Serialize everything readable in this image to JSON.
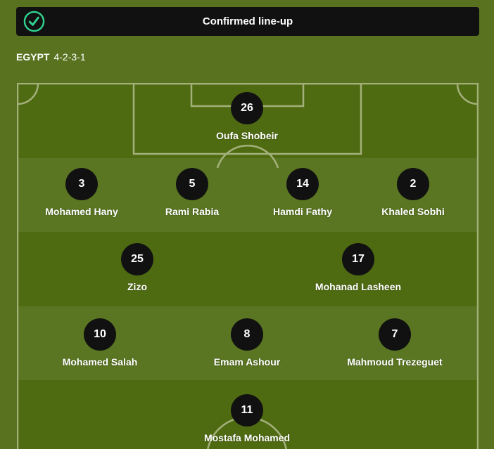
{
  "banner": {
    "title": "Confirmed line-up",
    "icon": "check-circle-icon",
    "icon_color": "#2fd38f"
  },
  "team": {
    "name": "EGYPT",
    "formation": "4-2-3-1"
  },
  "colors": {
    "pitch_dark": "#4f6b12",
    "pitch_light": "#5a7622",
    "lines": "#a3b07a"
  },
  "rows": [
    [
      {
        "number": "26",
        "name": "Oufa Shobeir"
      }
    ],
    [
      {
        "number": "3",
        "name": "Mohamed Hany"
      },
      {
        "number": "5",
        "name": "Rami Rabia"
      },
      {
        "number": "14",
        "name": "Hamdi Fathy"
      },
      {
        "number": "2",
        "name": "Khaled Sobhi"
      }
    ],
    [
      {
        "number": "25",
        "name": "Zizo"
      },
      {
        "number": "17",
        "name": "Mohanad Lasheen"
      }
    ],
    [
      {
        "number": "10",
        "name": "Mohamed Salah"
      },
      {
        "number": "8",
        "name": "Emam Ashour"
      },
      {
        "number": "7",
        "name": "Mahmoud Trezeguet"
      }
    ],
    [
      {
        "number": "11",
        "name": "Mostafa Mohamed"
      }
    ]
  ]
}
